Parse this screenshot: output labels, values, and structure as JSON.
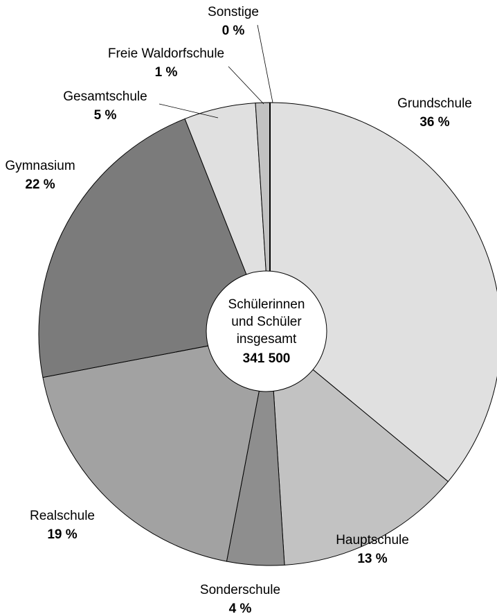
{
  "chart_data": {
    "type": "pie",
    "categories": [
      "Grundschule",
      "Hauptschule",
      "Sonderschule",
      "Realschule",
      "Gymnasium",
      "Gesamtschule",
      "Freie Waldorfschule",
      "Sonstige"
    ],
    "values": [
      36,
      13,
      4,
      19,
      22,
      5,
      1,
      0
    ],
    "value_labels": [
      "36 %",
      "13 %",
      "4 %",
      "19 %",
      "22 %",
      "5 %",
      "1 %",
      "0 %"
    ],
    "colors": [
      "#e0e0e0",
      "#c2c2c2",
      "#8e8e8e",
      "#a2a2a2",
      "#7b7b7b",
      "#e0e0e0",
      "#c2c2c2",
      "#000000"
    ],
    "center_text": [
      "Schülerinnen",
      "und Schüler",
      "insgesamt"
    ],
    "total": {
      "value": 341500,
      "label": "341 500"
    }
  }
}
